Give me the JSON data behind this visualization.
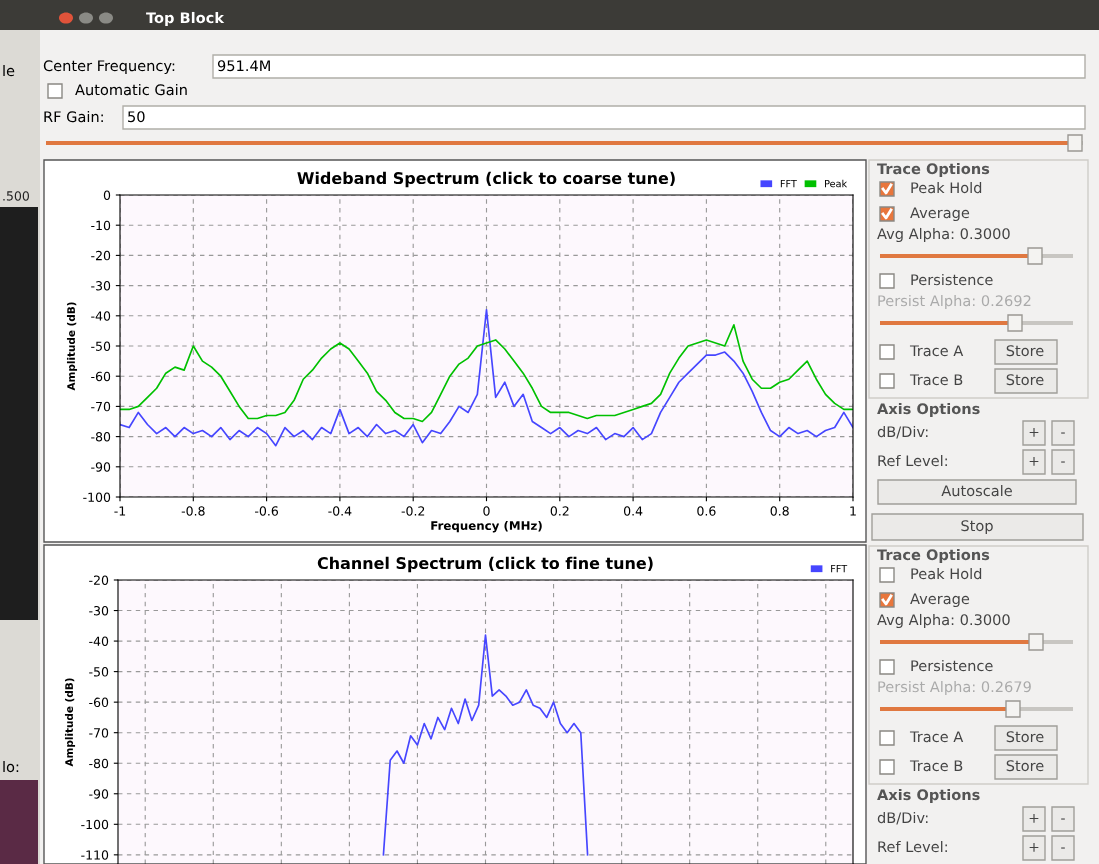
{
  "chart_data": [
    {
      "type": "line",
      "title": "Wideband Spectrum (click to coarse tune)",
      "xlabel": "Frequency (MHz)",
      "ylabel": "Amplitude (dB)",
      "x": [
        -1,
        -0.975,
        -0.95,
        -0.925,
        -0.9,
        -0.875,
        -0.85,
        -0.825,
        -0.8,
        -0.775,
        -0.75,
        -0.725,
        -0.7,
        -0.675,
        -0.65,
        -0.625,
        -0.6,
        -0.575,
        -0.55,
        -0.525,
        -0.5,
        -0.475,
        -0.45,
        -0.425,
        -0.4,
        -0.375,
        -0.35,
        -0.325,
        -0.3,
        -0.275,
        -0.25,
        -0.225,
        -0.2,
        -0.175,
        -0.15,
        -0.125,
        -0.1,
        -0.075,
        -0.05,
        -0.025,
        0,
        0.025,
        0.05,
        0.075,
        0.1,
        0.125,
        0.15,
        0.175,
        0.2,
        0.225,
        0.25,
        0.275,
        0.3,
        0.325,
        0.35,
        0.375,
        0.4,
        0.425,
        0.45,
        0.475,
        0.5,
        0.525,
        0.55,
        0.575,
        0.6,
        0.625,
        0.65,
        0.675,
        0.7,
        0.725,
        0.75,
        0.775,
        0.8,
        0.825,
        0.85,
        0.875,
        0.9,
        0.925,
        0.95,
        0.975,
        1
      ],
      "series": [
        {
          "name": "FFT",
          "color": "#4646ff",
          "values": [
            -76,
            -77,
            -72,
            -76,
            -79,
            -77,
            -80,
            -77,
            -79,
            -78,
            -80,
            -77,
            -81,
            -78,
            -80,
            -77,
            -79,
            -83,
            -77,
            -80,
            -78,
            -81,
            -77,
            -79,
            -71,
            -79,
            -77,
            -80,
            -76,
            -79,
            -78,
            -80,
            -76,
            -82,
            -78,
            -79,
            -75,
            -70,
            -72,
            -66,
            -38,
            -67,
            -62,
            -70,
            -66,
            -75,
            -77,
            -79,
            -77,
            -80,
            -78,
            -79,
            -77,
            -81,
            -79,
            -80,
            -77,
            -81,
            -79,
            -72,
            -67,
            -62,
            -59,
            -56,
            -53,
            -53,
            -52,
            -55,
            -59,
            -65,
            -72,
            -78,
            -80,
            -77,
            -79,
            -78,
            -80,
            -78,
            -77,
            -72,
            -77
          ]
        },
        {
          "name": "Peak",
          "color": "#00c000",
          "values": [
            -71,
            -71,
            -70,
            -67,
            -64,
            -59,
            -57,
            -58,
            -50,
            -55,
            -57,
            -60,
            -65,
            -70,
            -74,
            -74,
            -73,
            -73,
            -72,
            -68,
            -61,
            -58,
            -54,
            -51,
            -49,
            -51,
            -55,
            -59,
            -65,
            -68,
            -72,
            -74,
            -74,
            -75,
            -72,
            -66,
            -60,
            -56,
            -54,
            -50,
            -49,
            -48,
            -51,
            -55,
            -59,
            -64,
            -70,
            -72,
            -72,
            -72,
            -73,
            -74,
            -73,
            -73,
            -73,
            -72,
            -71,
            -70,
            -69,
            -66,
            -59,
            -54,
            -50,
            -49,
            -48,
            -49,
            -50,
            -43,
            -55,
            -61,
            -64,
            -64,
            -62,
            -61,
            -58,
            -55,
            -61,
            -66,
            -69,
            -71,
            -71
          ]
        }
      ],
      "xlim": [
        -1,
        1
      ],
      "ylim": [
        -100,
        0
      ],
      "xticks": [
        -1,
        -0.8,
        -0.6,
        -0.4,
        -0.2,
        0,
        0.2,
        0.4,
        0.6,
        0.8,
        1
      ],
      "yticks": [
        0,
        -10,
        -20,
        -30,
        -40,
        -50,
        -60,
        -70,
        -80,
        -90,
        -100
      ],
      "grid": true,
      "legend": "top right"
    },
    {
      "type": "line",
      "title": "Channel Spectrum (click to fine tune)",
      "ylabel": "Amplitude (dB)",
      "categories": [
        null,
        null,
        null,
        null,
        null,
        null,
        null,
        null,
        null,
        null,
        null,
        null,
        null,
        null,
        null,
        null,
        null,
        null,
        null,
        null,
        null,
        null,
        null,
        null,
        null,
        null,
        null,
        null,
        null,
        null,
        null,
        null,
        null,
        null,
        null,
        null,
        null,
        null,
        null,
        null,
        null,
        null,
        null,
        null,
        null,
        null,
        null,
        null,
        null,
        null,
        null,
        null,
        null,
        null,
        null,
        null,
        null,
        null,
        null,
        null,
        null,
        null,
        null,
        null,
        null,
        null,
        null,
        null,
        null,
        null,
        null,
        null,
        null,
        null,
        null,
        null,
        null,
        null,
        null,
        null,
        null,
        null,
        null,
        null,
        null,
        null,
        null,
        null,
        null,
        null,
        null,
        null,
        null,
        null,
        null,
        null,
        null,
        null,
        null,
        null,
        null,
        null,
        null,
        null,
        null,
        null,
        null,
        null,
        null
      ],
      "series": [
        {
          "name": "FFT",
          "color": "#4646ff",
          "values": [
            null,
            null,
            null,
            null,
            null,
            null,
            null,
            null,
            null,
            null,
            null,
            null,
            null,
            null,
            null,
            null,
            null,
            null,
            null,
            null,
            null,
            null,
            null,
            null,
            null,
            null,
            null,
            null,
            null,
            null,
            null,
            null,
            null,
            null,
            null,
            null,
            null,
            null,
            null,
            -110,
            -79,
            -76,
            -80,
            -71,
            -74,
            -67,
            -72,
            -65,
            -69,
            -62,
            -67,
            -59,
            -66,
            -61,
            -38,
            -58,
            -56,
            -58,
            -61,
            -60,
            -56,
            -61,
            -62,
            -65,
            -60,
            -67,
            -70,
            -67,
            -70,
            -110,
            null,
            null,
            null,
            null,
            null,
            null,
            null,
            null,
            null,
            null,
            null,
            null,
            null,
            null,
            null,
            null,
            null,
            null,
            null,
            null,
            null,
            null,
            null,
            null,
            null,
            null,
            null,
            null,
            null,
            null,
            null,
            null,
            null,
            null,
            null,
            null,
            null,
            null,
            null
          ]
        }
      ],
      "ylim": [
        -113,
        -20
      ],
      "yticks": [
        -20,
        -30,
        -40,
        -50,
        -60,
        -70,
        -80,
        -90,
        -100,
        -110
      ],
      "grid": true,
      "legend": "top right",
      "tick_labels": "y"
    },
    {
      "type": "other",
      "annotations": [
        "Top Block",
        "Center Frequency:",
        "951.4M",
        "Automatic Gain",
        "RF Gain:",
        "50",
        "le",
        ".500",
        "lo:",
        "Trace Options",
        "Peak Hold",
        "Average",
        "Avg Alpha: 0.3000",
        "Persistence",
        "Persist Alpha: 0.2692",
        "Trace A",
        "Store",
        "Trace B",
        "Store",
        "Axis Options",
        "dB/Div:",
        "+",
        "-",
        "Ref Level:",
        "+",
        "-",
        "Autoscale",
        "Stop",
        "Trace Options",
        "Peak Hold",
        "Average",
        "Avg Alpha: 0.3000",
        "Persistence",
        "Persist Alpha: 0.2679",
        "Trace A",
        "Store",
        "Trace B",
        "Store",
        "Axis Options",
        "dB/Div:",
        "+",
        "-",
        "Ref Level:",
        "+",
        "-"
      ]
    }
  ]
}
